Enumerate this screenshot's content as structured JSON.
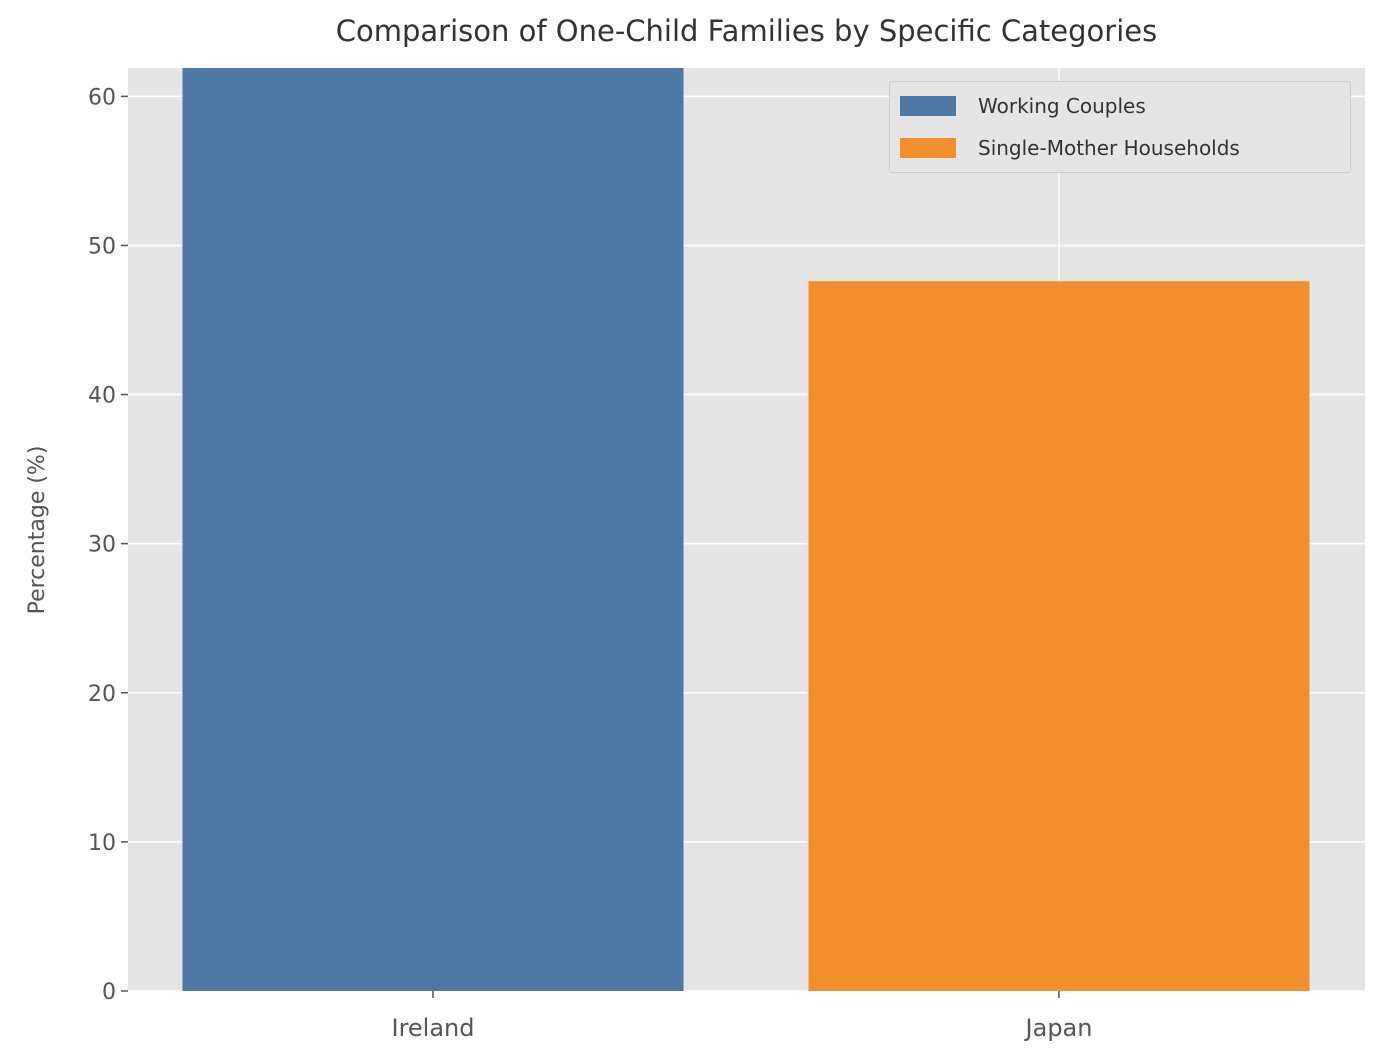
{
  "chart_data": {
    "type": "bar",
    "title": "Comparison of One-Child Families by Specific Categories",
    "xlabel": "",
    "ylabel": "Percentage (%)",
    "categories": [
      "Ireland",
      "Japan"
    ],
    "series": [
      {
        "name": "Working Couples",
        "category": "Ireland",
        "value": 62,
        "color": "#4e79a7"
      },
      {
        "name": "Single-Mother Households",
        "category": "Japan",
        "value": 47.6,
        "color": "#f28e2b"
      }
    ],
    "ylim": [
      0,
      61.9
    ],
    "yticks": [
      "0",
      "10",
      "20",
      "30",
      "40",
      "50",
      "60"
    ],
    "grid": true,
    "legend": "top-right",
    "background": "#e5e5e5"
  }
}
